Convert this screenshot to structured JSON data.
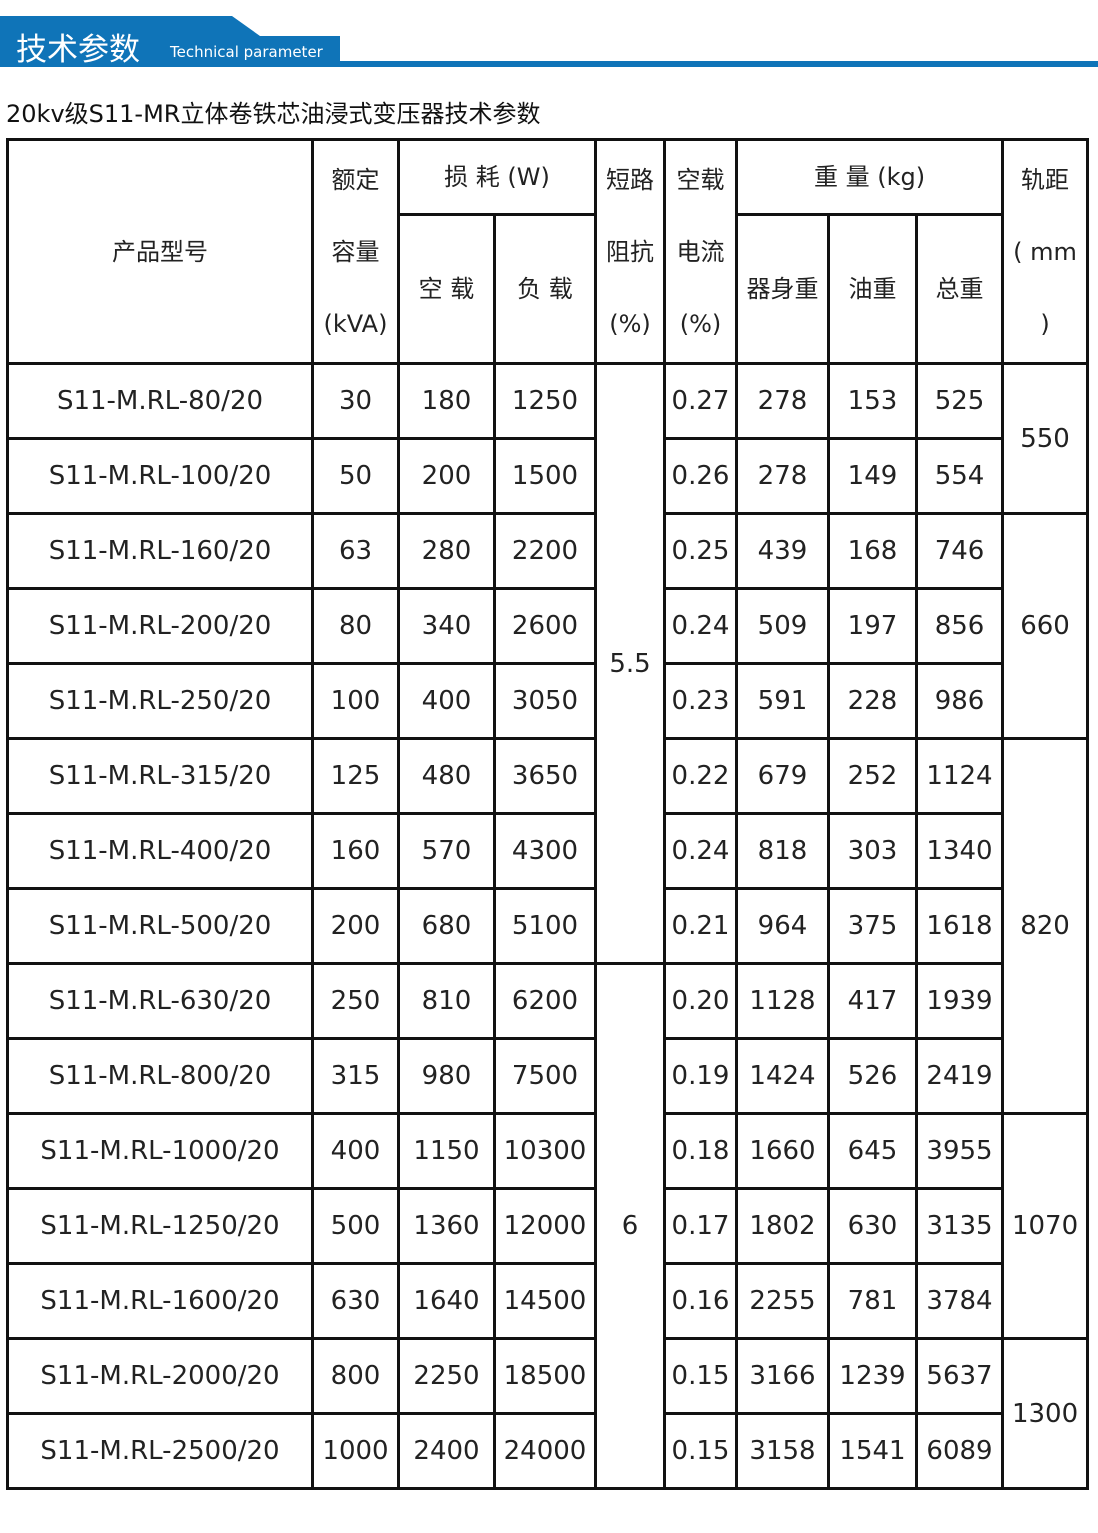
{
  "banner": {
    "title_cn": "技术参数",
    "title_en": "Technical parameter",
    "color": "#0f74b8"
  },
  "subtitle": "20kv级S11-MR立体卷铁芯油浸式变压器技术参数",
  "headers": {
    "model": "产品型号",
    "capacity": [
      "额定",
      "容量",
      "(kVA)"
    ],
    "loss": "损 耗 (W)",
    "loss_noload": "空 载",
    "loss_load": "负 载",
    "impedance": [
      "短路",
      "阻抗",
      "(%)"
    ],
    "noload_current": [
      "空载",
      "电流",
      "(%)"
    ],
    "weight": "重 量 (kg)",
    "body_weight": "器身重",
    "oil_weight": "油重",
    "total_weight": "总重",
    "track": [
      "轨距",
      "( mm",
      ")"
    ]
  },
  "rows": [
    {
      "model": "S11-M.RL-80/20",
      "capacity": "30",
      "noload": "180",
      "load": "1250",
      "current": "0.27",
      "body": "278",
      "oil": "153",
      "total": "525"
    },
    {
      "model": "S11-M.RL-100/20",
      "capacity": "50",
      "noload": "200",
      "load": "1500",
      "current": "0.26",
      "body": "278",
      "oil": "149",
      "total": "554"
    },
    {
      "model": "S11-M.RL-160/20",
      "capacity": "63",
      "noload": "280",
      "load": "2200",
      "current": "0.25",
      "body": "439",
      "oil": "168",
      "total": "746"
    },
    {
      "model": "S11-M.RL-200/20",
      "capacity": "80",
      "noload": "340",
      "load": "2600",
      "current": "0.24",
      "body": "509",
      "oil": "197",
      "total": "856"
    },
    {
      "model": "S11-M.RL-250/20",
      "capacity": "100",
      "noload": "400",
      "load": "3050",
      "current": "0.23",
      "body": "591",
      "oil": "228",
      "total": "986"
    },
    {
      "model": "S11-M.RL-315/20",
      "capacity": "125",
      "noload": "480",
      "load": "3650",
      "current": "0.22",
      "body": "679",
      "oil": "252",
      "total": "1124"
    },
    {
      "model": "S11-M.RL-400/20",
      "capacity": "160",
      "noload": "570",
      "load": "4300",
      "current": "0.24",
      "body": "818",
      "oil": "303",
      "total": "1340"
    },
    {
      "model": "S11-M.RL-500/20",
      "capacity": "200",
      "noload": "680",
      "load": "5100",
      "current": "0.21",
      "body": "964",
      "oil": "375",
      "total": "1618"
    },
    {
      "model": "S11-M.RL-630/20",
      "capacity": "250",
      "noload": "810",
      "load": "6200",
      "current": "0.20",
      "body": "1128",
      "oil": "417",
      "total": "1939"
    },
    {
      "model": "S11-M.RL-800/20",
      "capacity": "315",
      "noload": "980",
      "load": "7500",
      "current": "0.19",
      "body": "1424",
      "oil": "526",
      "total": "2419"
    },
    {
      "model": "S11-M.RL-1000/20",
      "capacity": "400",
      "noload": "1150",
      "load": "10300",
      "current": "0.18",
      "body": "1660",
      "oil": "645",
      "total": "3955"
    },
    {
      "model": "S11-M.RL-1250/20",
      "capacity": "500",
      "noload": "1360",
      "load": "12000",
      "current": "0.17",
      "body": "1802",
      "oil": "630",
      "total": "3135"
    },
    {
      "model": "S11-M.RL-1600/20",
      "capacity": "630",
      "noload": "1640",
      "load": "14500",
      "current": "0.16",
      "body": "2255",
      "oil": "781",
      "total": "3784"
    },
    {
      "model": "S11-M.RL-2000/20",
      "capacity": "800",
      "noload": "2250",
      "load": "18500",
      "current": "0.15",
      "body": "3166",
      "oil": "1239",
      "total": "5637"
    },
    {
      "model": "S11-M.RL-2500/20",
      "capacity": "1000",
      "noload": "2400",
      "load": "24000",
      "current": "0.15",
      "body": "3158",
      "oil": "1541",
      "total": "6089"
    }
  ],
  "impedance_groups": [
    {
      "value": "5.5",
      "rows": 8
    },
    {
      "value": "6",
      "rows": 7
    }
  ],
  "track_groups": [
    {
      "value": "550",
      "rows": 2
    },
    {
      "value": "660",
      "rows": 3
    },
    {
      "value": "820",
      "rows": 5
    },
    {
      "value": "1070",
      "rows": 3
    },
    {
      "value": "1300",
      "rows": 2
    }
  ]
}
